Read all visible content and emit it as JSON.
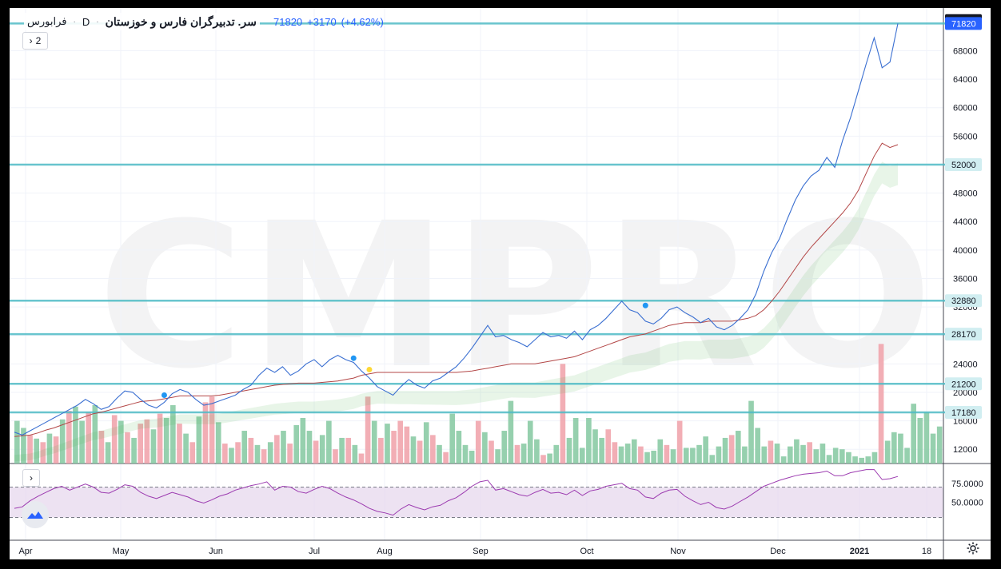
{
  "watermark": "CMPRO",
  "legend": {
    "symbol": "سر. تدبيرگران فارس و خوزستان",
    "timeframe": "D",
    "exchange": "فرابورس",
    "last": "71820",
    "change": "+3170",
    "change_pct": "(+4.62%)",
    "separator": "·"
  },
  "toggles": {
    "indicators_count": "2",
    "chevron": "›"
  },
  "colors": {
    "price_line": "#3a6fd1",
    "ma_line": "#b34747",
    "cloud": "#4caf50",
    "hline": "#4fbcc6",
    "vol_up": "#84c8a0",
    "vol_down": "#f0a0a8",
    "rsi_line": "#9c3bb0",
    "rsi_band": "#e6d5ec",
    "axis_label_bg": "#2962ff"
  },
  "chart_data": {
    "type": "line",
    "x_labels": [
      "Apr",
      "May",
      "Jun",
      "Jul",
      "Aug",
      "Sep",
      "Oct",
      "Nov",
      "Dec",
      "2021",
      "18"
    ],
    "y_ticks": [
      12000,
      16000,
      20000,
      24000,
      28000,
      32000,
      36000,
      40000,
      44000,
      48000,
      52000,
      56000,
      60000,
      64000,
      68000
    ],
    "ylim": [
      10000,
      74000
    ],
    "horizontal_levels": [
      72230,
      71820,
      52000,
      32880,
      28170,
      21200,
      17180
    ],
    "price_series": [
      14400,
      14000,
      14600,
      15200,
      15800,
      16400,
      17000,
      17600,
      18200,
      19000,
      18400,
      17600,
      18000,
      19200,
      20200,
      20000,
      19000,
      18200,
      17800,
      18600,
      19800,
      20400,
      20000,
      19000,
      18200,
      18400,
      18800,
      19200,
      19600,
      20400,
      21000,
      22400,
      23400,
      22800,
      23600,
      22400,
      23000,
      24000,
      24600,
      23600,
      24600,
      25200,
      24600,
      24200,
      23000,
      22000,
      20800,
      20200,
      19600,
      20800,
      21800,
      21000,
      20600,
      21600,
      22000,
      22800,
      23600,
      24800,
      26200,
      27800,
      29400,
      27800,
      28000,
      27400,
      27000,
      26400,
      27400,
      28400,
      27800,
      28000,
      27600,
      28600,
      27400,
      28800,
      29400,
      30400,
      31600,
      32800,
      31600,
      31200,
      30000,
      29600,
      30400,
      31600,
      32000,
      31200,
      30600,
      29800,
      30400,
      29200,
      28800,
      29400,
      30400,
      31600,
      33800,
      37000,
      39600,
      41600,
      44400,
      47000,
      49000,
      50400,
      51200,
      53000,
      51600,
      55400,
      58600,
      62400,
      66200,
      69800,
      65600,
      66400,
      71820
    ],
    "ma_series": [
      13800,
      13900,
      14000,
      14300,
      14700,
      15000,
      15400,
      15800,
      16200,
      16600,
      17000,
      17200,
      17500,
      17800,
      18100,
      18400,
      18700,
      18800,
      18900,
      19100,
      19300,
      19500,
      19500,
      19500,
      19500,
      19500,
      19600,
      19800,
      20000,
      20200,
      20400,
      20600,
      20800,
      21000,
      21100,
      21200,
      21300,
      21300,
      21300,
      21400,
      21500,
      21600,
      21800,
      22000,
      22400,
      22600,
      22800,
      22800,
      22800,
      22800,
      22800,
      22800,
      22800,
      22800,
      22800,
      22800,
      22800,
      22900,
      23000,
      23200,
      23400,
      23600,
      23800,
      24000,
      24000,
      24000,
      24000,
      24200,
      24400,
      24600,
      24800,
      25000,
      25400,
      25800,
      26200,
      26600,
      27000,
      27400,
      27800,
      28000,
      28200,
      28600,
      29000,
      29400,
      29600,
      29800,
      29800,
      29800,
      30000,
      30000,
      30000,
      30000,
      30200,
      30400,
      30800,
      31600,
      32800,
      34200,
      35800,
      37400,
      39000,
      40400,
      41600,
      42800,
      44000,
      45200,
      46600,
      48400,
      50800,
      53200,
      55000,
      54400,
      54800
    ],
    "rsi_ticks": [
      50.0,
      75.0
    ],
    "rsi_tick_labels": [
      "50.0000",
      "75.0000"
    ],
    "rsi_band": [
      30,
      70
    ],
    "rsi_series": [
      42,
      44,
      52,
      58,
      63,
      68,
      71,
      66,
      70,
      74,
      70,
      63,
      62,
      67,
      73,
      71,
      63,
      58,
      55,
      59,
      63,
      60,
      57,
      52,
      49,
      53,
      58,
      61,
      66,
      69,
      72,
      74,
      77,
      66,
      71,
      70,
      64,
      62,
      67,
      71,
      68,
      62,
      57,
      53,
      48,
      42,
      38,
      36,
      33,
      41,
      47,
      43,
      40,
      44,
      46,
      52,
      56,
      63,
      71,
      77,
      79,
      66,
      68,
      64,
      60,
      58,
      63,
      67,
      62,
      63,
      60,
      66,
      59,
      65,
      67,
      71,
      73,
      75,
      68,
      66,
      57,
      55,
      62,
      66,
      67,
      58,
      52,
      47,
      50,
      43,
      41,
      45,
      51,
      57,
      64,
      71,
      75,
      79,
      82,
      85,
      87,
      88,
      89,
      91,
      85,
      85,
      89,
      91,
      93,
      93,
      80,
      81,
      84
    ],
    "volume_series": [
      [
        16000,
        "up"
      ],
      [
        15000,
        "up"
      ],
      [
        14000,
        "down"
      ],
      [
        13500,
        "up"
      ],
      [
        13000,
        "down"
      ],
      [
        14200,
        "up"
      ],
      [
        13800,
        "down"
      ],
      [
        16200,
        "up"
      ],
      [
        17400,
        "down"
      ],
      [
        18000,
        "up"
      ],
      [
        16000,
        "up"
      ],
      [
        17200,
        "down"
      ],
      [
        18200,
        "up"
      ],
      [
        14600,
        "down"
      ],
      [
        13000,
        "up"
      ],
      [
        16800,
        "down"
      ],
      [
        16000,
        "up"
      ],
      [
        14400,
        "down"
      ],
      [
        13600,
        "up"
      ],
      [
        15600,
        "down"
      ],
      [
        16200,
        "down"
      ],
      [
        14800,
        "up"
      ],
      [
        17000,
        "down"
      ],
      [
        16400,
        "up"
      ],
      [
        18200,
        "up"
      ],
      [
        15600,
        "down"
      ],
      [
        14200,
        "up"
      ],
      [
        13000,
        "down"
      ],
      [
        16600,
        "up"
      ],
      [
        18600,
        "down"
      ],
      [
        19400,
        "down"
      ],
      [
        15800,
        "up"
      ],
      [
        12800,
        "down"
      ],
      [
        12200,
        "up"
      ],
      [
        13000,
        "down"
      ],
      [
        14600,
        "up"
      ],
      [
        13600,
        "down"
      ],
      [
        12600,
        "up"
      ],
      [
        12000,
        "down"
      ],
      [
        13000,
        "up"
      ],
      [
        14000,
        "down"
      ],
      [
        14600,
        "up"
      ],
      [
        12800,
        "down"
      ],
      [
        15400,
        "up"
      ],
      [
        16400,
        "up"
      ],
      [
        14600,
        "up"
      ],
      [
        13200,
        "down"
      ],
      [
        14000,
        "up"
      ],
      [
        16000,
        "up"
      ],
      [
        12000,
        "down"
      ],
      [
        13600,
        "up"
      ],
      [
        13600,
        "down"
      ],
      [
        12600,
        "up"
      ],
      [
        11400,
        "down"
      ],
      [
        19400,
        "down"
      ],
      [
        16000,
        "up"
      ],
      [
        13600,
        "down"
      ],
      [
        15600,
        "up"
      ],
      [
        14600,
        "down"
      ],
      [
        16000,
        "down"
      ],
      [
        15200,
        "down"
      ],
      [
        13800,
        "up"
      ],
      [
        13200,
        "down"
      ],
      [
        15800,
        "up"
      ],
      [
        14000,
        "down"
      ],
      [
        12600,
        "up"
      ],
      [
        11600,
        "down"
      ],
      [
        17000,
        "up"
      ],
      [
        14600,
        "up"
      ],
      [
        12600,
        "up"
      ],
      [
        11800,
        "up"
      ],
      [
        16000,
        "down"
      ],
      [
        14400,
        "up"
      ],
      [
        13200,
        "down"
      ],
      [
        12000,
        "up"
      ],
      [
        14600,
        "up"
      ],
      [
        18800,
        "up"
      ],
      [
        12600,
        "down"
      ],
      [
        12800,
        "up"
      ],
      [
        16000,
        "up"
      ],
      [
        13400,
        "up"
      ],
      [
        11200,
        "down"
      ],
      [
        11400,
        "up"
      ],
      [
        12600,
        "up"
      ],
      [
        24000,
        "down"
      ],
      [
        13600,
        "up"
      ],
      [
        16400,
        "up"
      ],
      [
        12200,
        "up"
      ],
      [
        16400,
        "up"
      ],
      [
        14800,
        "up"
      ],
      [
        13600,
        "up"
      ],
      [
        14800,
        "down"
      ],
      [
        13000,
        "down"
      ],
      [
        12400,
        "up"
      ],
      [
        12800,
        "up"
      ],
      [
        13400,
        "up"
      ],
      [
        12400,
        "down"
      ],
      [
        11600,
        "up"
      ],
      [
        11800,
        "up"
      ],
      [
        13400,
        "up"
      ],
      [
        12600,
        "down"
      ],
      [
        12000,
        "up"
      ],
      [
        16000,
        "down"
      ],
      [
        12200,
        "up"
      ],
      [
        12200,
        "up"
      ],
      [
        12600,
        "up"
      ],
      [
        13800,
        "up"
      ],
      [
        11200,
        "up"
      ],
      [
        12400,
        "up"
      ],
      [
        13600,
        "up"
      ],
      [
        14000,
        "down"
      ],
      [
        14600,
        "up"
      ],
      [
        12400,
        "up"
      ],
      [
        18800,
        "up"
      ],
      [
        15000,
        "up"
      ],
      [
        12400,
        "up"
      ],
      [
        13200,
        "down"
      ],
      [
        12800,
        "up"
      ],
      [
        11000,
        "up"
      ],
      [
        12400,
        "up"
      ],
      [
        13400,
        "up"
      ],
      [
        12600,
        "up"
      ],
      [
        13000,
        "down"
      ],
      [
        12000,
        "up"
      ],
      [
        12800,
        "up"
      ],
      [
        11200,
        "up"
      ],
      [
        12200,
        "up"
      ],
      [
        12000,
        "up"
      ],
      [
        11600,
        "up"
      ],
      [
        11000,
        "up"
      ],
      [
        10800,
        "up"
      ],
      [
        11000,
        "up"
      ],
      [
        11600,
        "up"
      ],
      [
        26800,
        "down"
      ],
      [
        13200,
        "up"
      ],
      [
        14400,
        "up"
      ],
      [
        14200,
        "up"
      ],
      [
        12200,
        "up"
      ],
      [
        18400,
        "up"
      ],
      [
        16400,
        "up"
      ],
      [
        17200,
        "up"
      ],
      [
        14200,
        "up"
      ],
      [
        15200,
        "up"
      ]
    ],
    "markers": [
      {
        "x_index": 19,
        "price": 19600,
        "color": "#2196f3"
      },
      {
        "x_index": 43,
        "price": 24800,
        "color": "#2196f3"
      },
      {
        "x_index": 45,
        "price": 23200,
        "color": "#fdd835"
      },
      {
        "x_index": 80,
        "price": 32200,
        "color": "#2196f3"
      }
    ]
  }
}
